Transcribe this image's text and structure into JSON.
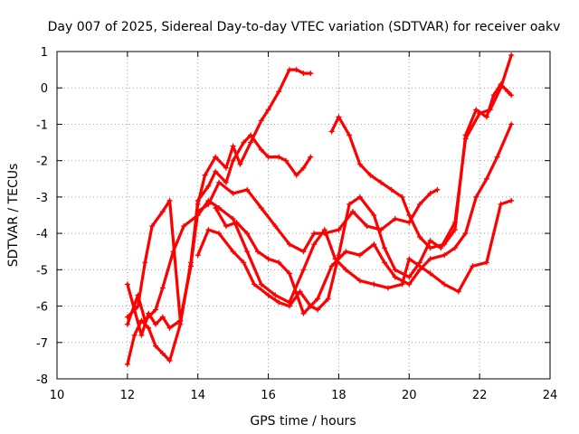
{
  "chart_data": {
    "type": "scatter",
    "title": "Day 007 of 2025, Sidereal Day-to-day VTEC variation (SDTVAR) for receiver oakv",
    "xlabel": "GPS time / hours",
    "ylabel": "SDTVAR / TECUs",
    "xlim": [
      10,
      24
    ],
    "ylim": [
      -8,
      1
    ],
    "xticks": [
      "10",
      "12",
      "14",
      "16",
      "18",
      "20",
      "22",
      "24"
    ],
    "yticks": [
      "1",
      "0",
      "-1",
      "-2",
      "-3",
      "-4",
      "-5",
      "-6",
      "-7",
      "-8"
    ],
    "grid": true,
    "marker": "plus",
    "color": "#ff0000",
    "series": [
      {
        "x": [
          12.0,
          12.2,
          12.4,
          12.6,
          12.8,
          13.0,
          13.2,
          13.5,
          13.8,
          14.0,
          14.2,
          14.5,
          14.8,
          15.0,
          15.2,
          15.5,
          15.8,
          16.0,
          16.3,
          16.6,
          16.8,
          17.0,
          17.2
        ],
        "values": [
          -7.6,
          -6.8,
          -6.4,
          -6.6,
          -7.1,
          -7.3,
          -7.5,
          -6.5,
          -4.8,
          -3.2,
          -2.4,
          -1.9,
          -2.2,
          -1.6,
          -2.1,
          -1.5,
          -0.9,
          -0.6,
          -0.1,
          0.5,
          0.5,
          0.4,
          0.4
        ]
      },
      {
        "x": [
          12.0,
          12.2,
          12.4,
          12.6,
          12.8,
          13.0,
          13.2,
          13.5,
          13.8,
          14.0,
          14.3,
          14.5,
          14.8,
          15.0,
          15.3,
          15.5,
          15.8,
          16.0,
          16.3,
          16.5,
          16.8,
          17.0,
          17.2
        ],
        "values": [
          -5.4,
          -6.1,
          -6.8,
          -6.2,
          -6.5,
          -6.3,
          -6.6,
          -6.4,
          -4.9,
          -3.1,
          -2.7,
          -2.3,
          -2.6,
          -2.0,
          -1.5,
          -1.3,
          -1.7,
          -1.9,
          -1.9,
          -2.0,
          -2.4,
          -2.2,
          -1.9
        ]
      },
      {
        "x": [
          12.0,
          12.3,
          12.5,
          12.7,
          13.0,
          13.2,
          13.5,
          13.8,
          14.0,
          14.3,
          14.6,
          15.0,
          15.4,
          15.8,
          16.2,
          16.6,
          17.0,
          17.3,
          17.6,
          18.0,
          18.4,
          18.8,
          19.2,
          19.6,
          20.0,
          20.3,
          20.6,
          20.8
        ],
        "values": [
          -6.3,
          -6.0,
          -4.8,
          -3.8,
          -3.4,
          -3.1,
          -6.4,
          -4.9,
          -3.4,
          -3.2,
          -2.6,
          -2.9,
          -2.8,
          -3.3,
          -3.8,
          -4.3,
          -4.5,
          -4.0,
          -4.0,
          -3.9,
          -3.4,
          -3.8,
          -3.9,
          -3.6,
          -3.7,
          -3.2,
          -2.9,
          -2.8
        ]
      },
      {
        "x": [
          12.0,
          12.3,
          12.5,
          12.8,
          13.0,
          13.3,
          13.6,
          14.0,
          14.3,
          14.6,
          15.0,
          15.4,
          15.8,
          16.2,
          16.6,
          17.0,
          17.3,
          17.6,
          17.9,
          18.2,
          18.6,
          19.0,
          19.4,
          19.8,
          20.0,
          20.3,
          20.6,
          21.0,
          21.4,
          21.8,
          22.2,
          22.6,
          22.9
        ],
        "values": [
          -6.5,
          -5.7,
          -6.4,
          -6.1,
          -5.5,
          -4.5,
          -3.8,
          -3.5,
          -3.1,
          -3.3,
          -3.6,
          -4.5,
          -5.4,
          -5.7,
          -5.9,
          -5.0,
          -4.3,
          -3.9,
          -4.7,
          -5.0,
          -5.3,
          -5.4,
          -5.5,
          -5.4,
          -4.7,
          -4.9,
          -5.1,
          -5.4,
          -5.6,
          -4.9,
          -4.8,
          -3.2,
          -3.1
        ]
      },
      {
        "x": [
          14.0,
          14.3,
          14.6,
          15.0,
          15.3,
          15.6,
          16.0,
          16.3,
          16.6,
          16.9,
          17.2,
          17.4,
          17.7,
          18.0,
          18.3,
          18.6,
          19.0,
          19.3,
          19.6,
          20.0,
          20.3,
          20.6,
          20.9,
          21.3,
          21.6,
          22.0,
          22.3,
          22.6,
          22.9
        ],
        "values": [
          -4.6,
          -3.9,
          -4.0,
          -4.5,
          -4.8,
          -5.4,
          -5.7,
          -5.9,
          -6.0,
          -5.6,
          -6.0,
          -6.1,
          -5.8,
          -4.6,
          -3.2,
          -3.0,
          -3.5,
          -4.4,
          -5.0,
          -5.2,
          -4.8,
          -4.2,
          -4.4,
          -3.7,
          -1.4,
          -0.7,
          -0.6,
          0.0,
          0.9
        ]
      },
      {
        "x": [
          17.8,
          18.0,
          18.3,
          18.6,
          18.9,
          19.2,
          19.5,
          19.8,
          20.0,
          20.3,
          20.6,
          21.0,
          21.3,
          21.6,
          21.9,
          22.2,
          22.4,
          22.6,
          22.8,
          22.9
        ],
        "values": [
          -1.2,
          -0.8,
          -1.3,
          -2.1,
          -2.4,
          -2.6,
          -2.8,
          -3.0,
          -3.5,
          -4.1,
          -4.4,
          -4.3,
          -3.9,
          -1.3,
          -0.6,
          -0.8,
          -0.2,
          0.1,
          -0.1,
          -0.2
        ]
      },
      {
        "x": [
          14.5,
          14.8,
          15.1,
          15.4,
          15.7,
          16.0,
          16.3,
          16.6,
          17.0,
          17.4,
          17.8,
          18.2,
          18.6,
          19.0,
          19.3,
          19.6,
          20.0,
          20.3,
          20.6,
          21.0,
          21.3,
          21.6,
          21.9,
          22.2,
          22.5,
          22.9
        ],
        "values": [
          -3.3,
          -3.8,
          -3.7,
          -4.0,
          -4.5,
          -4.7,
          -4.8,
          -5.1,
          -6.2,
          -5.8,
          -4.9,
          -4.5,
          -4.6,
          -4.3,
          -4.8,
          -5.2,
          -5.4,
          -5.0,
          -4.7,
          -4.6,
          -4.4,
          -4.0,
          -3.0,
          -2.5,
          -1.9,
          -1.0
        ]
      }
    ]
  }
}
